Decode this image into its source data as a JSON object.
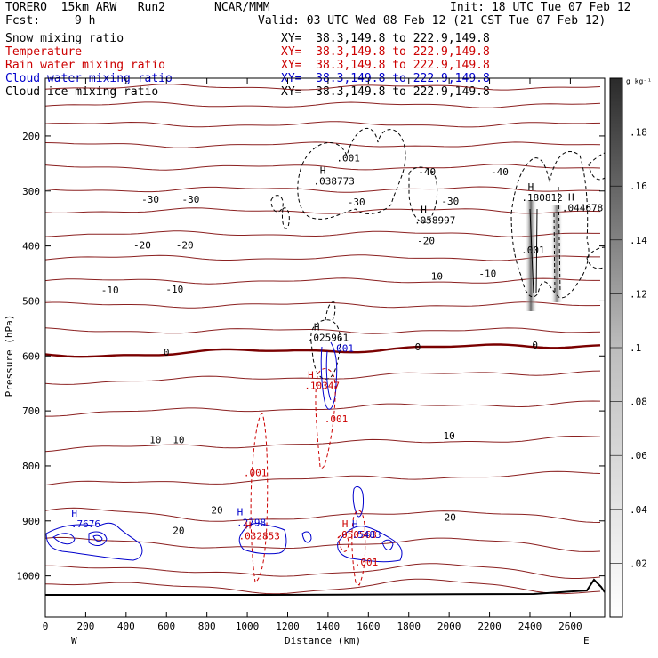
{
  "header": {
    "model": "TORERO  15km ARW   Run2",
    "org": "NCAR/MMM",
    "init": "Init: 18 UTC Tue 07 Feb 12",
    "fcst_label": "Fcst:",
    "fcst_value": "9 h",
    "valid": "Valid: 03 UTC Wed 08 Feb 12 (21 CST Tue 07 Feb 12)"
  },
  "fields": [
    {
      "name": "Snow mixing ratio",
      "xy": "XY=  38.3,149.8 to 222.9,149.8",
      "color": "#000000"
    },
    {
      "name": "Temperature",
      "xy": "XY=  38.3,149.8 to 222.9,149.8",
      "color": "#cc0000"
    },
    {
      "name": "Rain water mixing ratio",
      "xy": "XY=  38.3,149.8 to 222.9,149.8",
      "color": "#cc0000"
    },
    {
      "name": "Cloud water mixing ratio",
      "xy": "XY=  38.3,149.8 to 222.9,149.8",
      "color": "#0000cc"
    },
    {
      "name": "Cloud ice mixing ratio",
      "xy": "XY=  38.3,149.8 to 222.9,149.8",
      "color": "#000000"
    }
  ],
  "colorbar": {
    "unit": "g kg⁻¹",
    "ticks": [
      ".02",
      ".04",
      ".06",
      ".08",
      ".1",
      ".12",
      ".14",
      ".16",
      ".18"
    ],
    "values": [
      0.02,
      0.04,
      0.06,
      0.08,
      0.1,
      0.12,
      0.14,
      0.16,
      0.18
    ],
    "range": [
      0,
      0.2
    ]
  },
  "chart_data": {
    "type": "contour-cross-section",
    "xlabel": "Distance (km)",
    "ylabel": "Pressure (hPa)",
    "xlim": [
      0,
      2770
    ],
    "ylim": [
      1075,
      95
    ],
    "x_ticks": [
      0,
      200,
      400,
      600,
      800,
      1000,
      1200,
      1400,
      1600,
      1800,
      2000,
      2200,
      2400,
      2600
    ],
    "y_ticks": [
      200,
      300,
      400,
      500,
      600,
      700,
      800,
      900,
      1000
    ],
    "endpoints": {
      "left": "W",
      "right": "E"
    },
    "temperature_labels": [
      {
        "text": "-40",
        "x": 1890,
        "p": 265
      },
      {
        "text": "-40",
        "x": 2250,
        "p": 265
      },
      {
        "text": "-30",
        "x": 520,
        "p": 315
      },
      {
        "text": "-30",
        "x": 720,
        "p": 315
      },
      {
        "text": "-30",
        "x": 1540,
        "p": 320
      },
      {
        "text": "-30",
        "x": 2005,
        "p": 318
      },
      {
        "text": "-20",
        "x": 480,
        "p": 398
      },
      {
        "text": "-20",
        "x": 690,
        "p": 398
      },
      {
        "text": "-20",
        "x": 1885,
        "p": 390
      },
      {
        "text": "-10",
        "x": 320,
        "p": 480
      },
      {
        "text": "-10",
        "x": 640,
        "p": 478
      },
      {
        "text": "-10",
        "x": 1925,
        "p": 455
      },
      {
        "text": "-10",
        "x": 2190,
        "p": 450
      },
      {
        "text": "0",
        "x": 600,
        "p": 593
      },
      {
        "text": "0",
        "x": 1845,
        "p": 583
      },
      {
        "text": "0",
        "x": 2425,
        "p": 580
      },
      {
        "text": "10",
        "x": 545,
        "p": 752
      },
      {
        "text": "10",
        "x": 660,
        "p": 752
      },
      {
        "text": "10",
        "x": 2000,
        "p": 745
      },
      {
        "text": "20",
        "x": 660,
        "p": 917
      },
      {
        "text": "20",
        "x": 850,
        "p": 880
      },
      {
        "text": "20",
        "x": 2005,
        "p": 893
      }
    ],
    "temperature_levels": [
      -60,
      -50,
      -40,
      -30,
      -20,
      -10,
      0,
      10,
      20
    ],
    "maxima_labels": [
      {
        "field": "Cloud ice mixing ratio",
        "value": ".001",
        "x": 1500,
        "p": 240
      },
      {
        "field": "Cloud ice mixing ratio",
        "value": ".038773",
        "x": 1430,
        "p": 282
      },
      {
        "field": "Cloud ice mixing ratio",
        "value": ".058997",
        "x": 1930,
        "p": 353
      },
      {
        "field": "Cloud ice mixing ratio",
        "value": ".180812",
        "x": 2460,
        "p": 312
      },
      {
        "field": "Cloud ice mixing ratio",
        "value": ".044678",
        "x": 2660,
        "p": 330
      },
      {
        "field": "Cloud ice mixing ratio",
        "value": ".001",
        "x": 2415,
        "p": 407
      },
      {
        "field": "Snow mixing ratio",
        "value": ".025961",
        "x": 1400,
        "p": 566
      },
      {
        "field": "Cloud water mixing ratio",
        "value": ".001",
        "x": 1470,
        "p": 586
      },
      {
        "field": "Rain water mixing ratio",
        "value": ".10347",
        "x": 1370,
        "p": 654
      },
      {
        "field": "Rain water mixing ratio",
        "value": ".001",
        "x": 1440,
        "p": 714
      },
      {
        "field": "Rain water mixing ratio",
        "value": ".001",
        "x": 1040,
        "p": 812
      },
      {
        "field": "Cloud water mixing ratio",
        "value": ".7676",
        "x": 200,
        "p": 905
      },
      {
        "field": "Cloud water mixing ratio",
        "value": ".2798",
        "x": 1020,
        "p": 903
      },
      {
        "field": "Rain water mixing ratio",
        "value": ".032853",
        "x": 1060,
        "p": 927
      },
      {
        "field": "Rain water mixing ratio",
        "value": ".050563",
        "x": 1540,
        "p": 925
      },
      {
        "field": "Cloud water mixing ratio",
        "value": ".5483",
        "x": 1590,
        "p": 925
      },
      {
        "field": "Rain water mixing ratio",
        "value": ".001",
        "x": 1590,
        "p": 975
      }
    ]
  }
}
